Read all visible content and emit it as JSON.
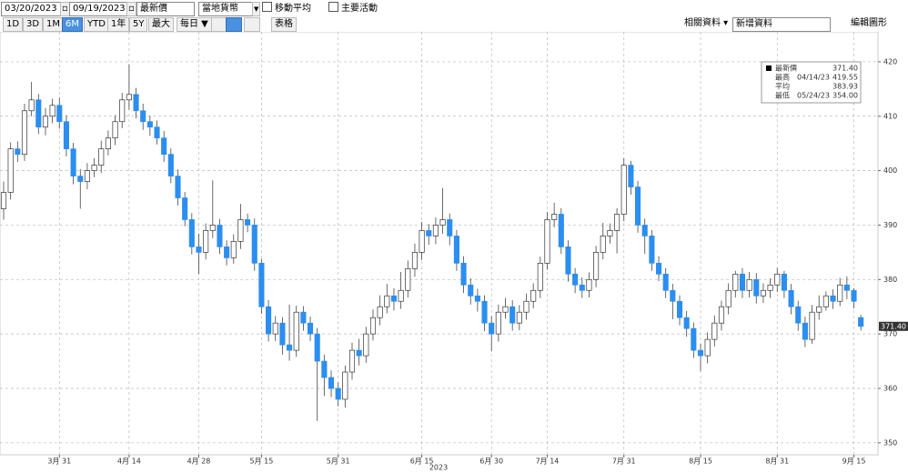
{
  "toolbar": {
    "start_date": "03/20/2023",
    "end_date": "09/19/2023",
    "price_field": "最新價",
    "currency": "當地貨幣",
    "moving_average": "移動平均",
    "key_events": "主要活動",
    "periods": [
      "1D",
      "3D",
      "1M",
      "6M",
      "YTD",
      "1年",
      "5Y",
      "最大"
    ],
    "frequency": "每日 ▼",
    "table": "表格",
    "related": "相關資料 ▾",
    "add_data": "新增資料",
    "edit_chart": "編輯圖形"
  },
  "chart_data": {
    "type": "candlestick",
    "x_label": "2023",
    "up_color": "#ffffff",
    "down_color": "#2b8ef0",
    "wick_color": "#444444",
    "grid": true,
    "ylim": [
      347.8,
      425.5
    ],
    "yticks": [
      350,
      360,
      370,
      380,
      390,
      400,
      410,
      420
    ],
    "stats": [
      {
        "label": "最新價",
        "date": null,
        "value": "371.40"
      },
      {
        "label": "最高",
        "date": "04/14/23",
        "value": "419.55"
      },
      {
        "label": "平均",
        "date": null,
        "value": "383.93"
      },
      {
        "label": "最低",
        "date": "05/24/23",
        "value": "354.00"
      }
    ],
    "categories": [
      null,
      null,
      null,
      null,
      null,
      null,
      null,
      null,
      "3月 31",
      null,
      null,
      null,
      null,
      null,
      null,
      null,
      null,
      null,
      "4月 14",
      null,
      null,
      null,
      null,
      null,
      null,
      null,
      null,
      null,
      "4月 28",
      null,
      null,
      null,
      null,
      null,
      null,
      null,
      null,
      "5月 15",
      null,
      null,
      null,
      null,
      null,
      null,
      null,
      null,
      null,
      null,
      "5月 31",
      null,
      null,
      null,
      null,
      null,
      null,
      null,
      null,
      null,
      null,
      null,
      "6月 15",
      null,
      null,
      null,
      null,
      null,
      null,
      null,
      null,
      null,
      "6月 30",
      null,
      null,
      null,
      null,
      null,
      null,
      null,
      "7月 14",
      null,
      null,
      null,
      null,
      null,
      null,
      null,
      null,
      null,
      null,
      "7月 31",
      null,
      null,
      null,
      null,
      null,
      null,
      null,
      null,
      null,
      null,
      "8月 15",
      null,
      null,
      null,
      null,
      null,
      null,
      null,
      null,
      null,
      null,
      "8月 31",
      null,
      null,
      null,
      null,
      null,
      null,
      null,
      null,
      null,
      null,
      "9月 15",
      null
    ],
    "candles": [
      [
        393,
        398,
        391,
        396
      ],
      [
        396,
        405.2,
        394.7,
        404
      ],
      [
        404,
        405.4,
        401.6,
        403
      ],
      [
        403,
        412.3,
        401.8,
        411
      ],
      [
        411,
        416.3,
        410,
        413
      ],
      [
        413,
        414.1,
        406.7,
        408
      ],
      [
        408,
        411.5,
        406.5,
        410
      ],
      [
        410,
        413.2,
        408.7,
        412
      ],
      [
        412,
        413.4,
        407.7,
        409
      ],
      [
        409,
        410.2,
        402.6,
        404
      ],
      [
        404,
        405.1,
        397.5,
        399
      ],
      [
        399,
        400.3,
        393,
        398
      ],
      [
        398,
        401.4,
        396.6,
        400
      ],
      [
        400,
        402.3,
        398.8,
        401
      ],
      [
        401,
        405.5,
        399.6,
        404
      ],
      [
        404,
        407.4,
        402.8,
        406
      ],
      [
        406,
        410.2,
        404.7,
        409
      ],
      [
        409,
        414.3,
        407.8,
        413
      ],
      [
        413,
        419.55,
        411.2,
        414
      ],
      [
        414,
        415.2,
        409.6,
        411
      ],
      [
        411,
        412.3,
        407.5,
        409
      ],
      [
        409,
        410.1,
        406.4,
        408
      ],
      [
        408,
        409.2,
        404.8,
        406
      ],
      [
        406,
        407.3,
        401.6,
        403
      ],
      [
        403,
        404.1,
        397.7,
        399
      ],
      [
        399,
        400.2,
        393.6,
        395
      ],
      [
        395,
        396.1,
        389.8,
        391
      ],
      [
        391,
        392.2,
        384.6,
        386
      ],
      [
        386,
        388.4,
        381,
        385
      ],
      [
        385,
        390.3,
        383.7,
        389
      ],
      [
        389,
        398.2,
        387.6,
        390
      ],
      [
        390,
        391.1,
        384.7,
        386
      ],
      [
        386,
        387.2,
        382.6,
        384
      ],
      [
        384,
        388.3,
        382.9,
        387
      ],
      [
        387,
        393.9,
        385.6,
        391
      ],
      [
        391,
        392.1,
        388.7,
        390
      ],
      [
        390,
        391.2,
        381.6,
        383
      ],
      [
        383,
        383.8,
        373.7,
        375
      ],
      [
        375,
        376.2,
        368.6,
        370
      ],
      [
        370,
        373.3,
        368.7,
        372
      ],
      [
        372,
        373.1,
        366.2,
        368
      ],
      [
        368,
        375.4,
        365.1,
        367
      ],
      [
        367,
        375.2,
        365.8,
        374
      ],
      [
        374,
        375.1,
        370.6,
        372
      ],
      [
        372,
        373.2,
        368.7,
        370
      ],
      [
        370,
        371.1,
        354,
        365
      ],
      [
        365,
        366.2,
        358.6,
        362
      ],
      [
        362,
        363.3,
        358.4,
        360
      ],
      [
        360,
        361.1,
        356.7,
        358
      ],
      [
        358,
        364.2,
        356.5,
        363
      ],
      [
        363,
        368.4,
        361.6,
        367
      ],
      [
        367,
        369.1,
        364.2,
        366
      ],
      [
        366,
        371.3,
        364.7,
        370
      ],
      [
        370,
        374.5,
        368.8,
        373
      ],
      [
        373,
        377.1,
        371.6,
        375
      ],
      [
        375,
        379.2,
        373.8,
        377
      ],
      [
        377,
        378.4,
        374.3,
        376
      ],
      [
        376,
        381.4,
        374.6,
        378
      ],
      [
        378,
        383.5,
        376.7,
        382
      ],
      [
        382,
        386.6,
        380.5,
        385
      ],
      [
        385,
        390.6,
        383.6,
        389
      ],
      [
        389,
        390.2,
        386.4,
        388
      ],
      [
        388,
        391.4,
        386.5,
        390
      ],
      [
        390,
        396.8,
        388.4,
        391
      ],
      [
        391,
        392.1,
        386.3,
        388
      ],
      [
        388,
        389.1,
        381.6,
        383
      ],
      [
        383,
        384.3,
        377.5,
        379
      ],
      [
        379,
        380.2,
        375.4,
        377
      ],
      [
        377,
        378.3,
        374.1,
        376
      ],
      [
        376,
        377.1,
        370.5,
        372
      ],
      [
        372,
        373.3,
        366.8,
        370
      ],
      [
        370,
        375.4,
        368.6,
        374
      ],
      [
        374,
        376.6,
        372.8,
        375
      ],
      [
        375,
        376.2,
        370.6,
        372
      ],
      [
        372,
        375.3,
        370.7,
        374
      ],
      [
        374,
        377.4,
        372.6,
        376
      ],
      [
        376,
        379.3,
        374.7,
        378
      ],
      [
        378,
        384.2,
        376.6,
        383
      ],
      [
        383,
        392.4,
        381.8,
        391
      ],
      [
        391,
        394.1,
        389.6,
        392
      ],
      [
        392,
        393.1,
        384.7,
        386
      ],
      [
        386,
        387.2,
        379.6,
        381
      ],
      [
        381,
        382.1,
        377.5,
        379
      ],
      [
        379,
        380.4,
        376.6,
        378
      ],
      [
        378,
        381.3,
        376.7,
        380
      ],
      [
        380,
        386.2,
        378.6,
        385
      ],
      [
        385,
        390.4,
        383.7,
        388
      ],
      [
        388,
        390.3,
        386.6,
        389
      ],
      [
        389,
        393.1,
        384.8,
        392
      ],
      [
        392,
        402.3,
        390.7,
        401
      ],
      [
        401,
        401.8,
        395.6,
        397
      ],
      [
        397,
        398.1,
        388.6,
        390
      ],
      [
        390,
        391.2,
        384.7,
        388
      ],
      [
        388,
        389.1,
        381.6,
        383
      ],
      [
        383,
        384.3,
        379.7,
        381
      ],
      [
        381,
        382.1,
        376.6,
        378
      ],
      [
        378,
        379.2,
        372.7,
        376
      ],
      [
        376,
        377.1,
        371.6,
        373
      ],
      [
        373,
        374.2,
        369.5,
        371
      ],
      [
        371,
        372.1,
        365.6,
        367
      ],
      [
        367,
        368.2,
        363.2,
        366
      ],
      [
        366,
        370.3,
        364.6,
        369
      ],
      [
        369,
        373.4,
        367.7,
        372
      ],
      [
        372,
        376.1,
        370.6,
        375
      ],
      [
        375,
        379.3,
        373.6,
        378
      ],
      [
        378,
        381.6,
        376.7,
        381
      ],
      [
        381,
        382.1,
        376.6,
        378
      ],
      [
        378,
        381.4,
        376.7,
        380
      ],
      [
        380,
        381.2,
        375.6,
        377
      ],
      [
        377,
        379.3,
        375.7,
        378
      ],
      [
        378,
        380.2,
        376.6,
        379
      ],
      [
        379,
        382.1,
        377.7,
        381
      ],
      [
        381,
        381.6,
        376.6,
        378
      ],
      [
        378,
        379.2,
        373.6,
        375
      ],
      [
        375,
        376.1,
        370.6,
        372
      ],
      [
        372,
        373.2,
        367.6,
        369
      ],
      [
        369,
        375.3,
        368.2,
        374
      ],
      [
        374,
        377.1,
        372.6,
        375
      ],
      [
        375,
        377.8,
        374.3,
        377
      ],
      [
        377,
        378.2,
        374.6,
        376
      ],
      [
        376,
        380.3,
        375.1,
        379
      ],
      [
        379,
        380.6,
        376.4,
        378
      ],
      [
        378,
        378.4,
        374.7,
        376
      ],
      [
        373,
        373.5,
        370.6,
        371.4
      ]
    ]
  }
}
